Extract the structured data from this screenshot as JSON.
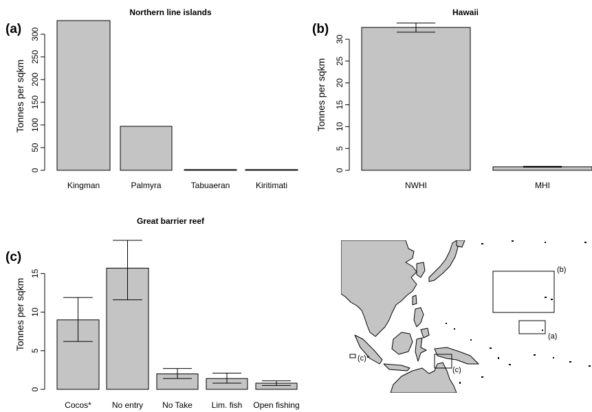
{
  "colors": {
    "bar_fill": "#c4c4c4",
    "land_fill": "#c4c4c4",
    "stroke": "#000000"
  },
  "chart_data": [
    {
      "type": "bar",
      "panel": "(a)",
      "title": "Northern line islands",
      "ylabel": "Tonnes per sqkm",
      "categories": [
        "Kingman",
        "Palmyra",
        "Tabuaeran",
        "Kiritimati"
      ],
      "values": [
        330,
        97,
        1,
        1
      ],
      "errors": [
        null,
        null,
        null,
        null
      ],
      "ylim": [
        0,
        330
      ],
      "yticks": [
        "0",
        "50",
        "100",
        "150",
        "200",
        "250",
        "300"
      ],
      "grid": false
    },
    {
      "type": "bar",
      "panel": "(b)",
      "title": "Hawaii",
      "ylabel": "Tonnes per sqkm",
      "categories": [
        "NWHI",
        "MHI"
      ],
      "values": [
        32.7,
        0.8
      ],
      "errors": [
        [
          31.6,
          33.7
        ],
        [
          0.7,
          0.9
        ]
      ],
      "ylim": [
        0,
        33
      ],
      "yticks": [
        "0",
        "5",
        "10",
        "15",
        "20",
        "25",
        "30"
      ],
      "grid": false
    },
    {
      "type": "bar",
      "panel": "(c)",
      "title": "Great barrier reef",
      "ylabel": "Tonnes per sqkm",
      "categories": [
        "Cocos*",
        "No entry",
        "No Take",
        "Lim. fish",
        "Open fishing"
      ],
      "values": [
        9.0,
        15.7,
        2.0,
        1.4,
        0.8
      ],
      "errors": [
        [
          6.2,
          11.9
        ],
        [
          11.6,
          19.3
        ],
        [
          1.4,
          2.7
        ],
        [
          0.8,
          2.1
        ],
        [
          0.5,
          1.1
        ]
      ],
      "ylim": [
        0,
        19.3
      ],
      "yticks": [
        "0",
        "5",
        "10",
        "15"
      ],
      "grid": false
    }
  ],
  "map": {
    "labels": {
      "b": "(b)",
      "a": "(a)",
      "c": "(c)",
      "c_cocos": "(c)*"
    }
  }
}
